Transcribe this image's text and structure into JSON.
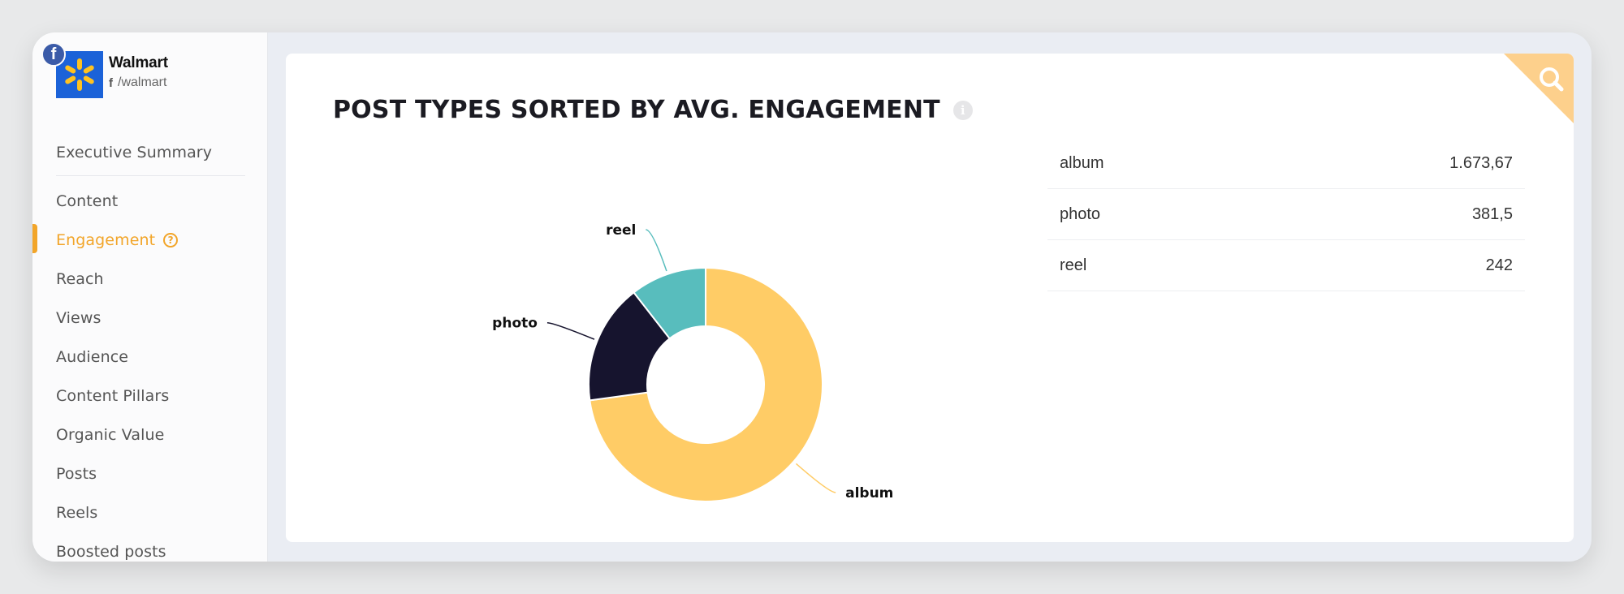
{
  "brand": {
    "name": "Walmart",
    "handle": "/walmart",
    "network_icon": "facebook-icon"
  },
  "sidebar": {
    "items": [
      {
        "label": "Executive Summary"
      },
      {
        "label": "Content"
      },
      {
        "label": "Engagement",
        "active": true
      },
      {
        "label": "Reach"
      },
      {
        "label": "Views"
      },
      {
        "label": "Audience"
      },
      {
        "label": "Content Pillars"
      },
      {
        "label": "Organic Value"
      },
      {
        "label": "Posts"
      },
      {
        "label": "Reels"
      },
      {
        "label": "Boosted posts"
      }
    ]
  },
  "main": {
    "title": "POST TYPES SORTED BY AVG. ENGAGEMENT",
    "table": [
      {
        "type": "album",
        "value": "1.673,67"
      },
      {
        "type": "photo",
        "value": "381,5"
      },
      {
        "type": "reel",
        "value": "242"
      }
    ]
  },
  "chart_data": {
    "type": "pie",
    "variant": "donut",
    "categories": [
      "album",
      "photo",
      "reel"
    ],
    "values": [
      1673.67,
      381.5,
      242
    ],
    "colors": [
      "#ffcc66",
      "#16142e",
      "#58bdbd"
    ]
  },
  "colors": {
    "accent": "#f2a529",
    "search_corner": "#fdd08c"
  }
}
